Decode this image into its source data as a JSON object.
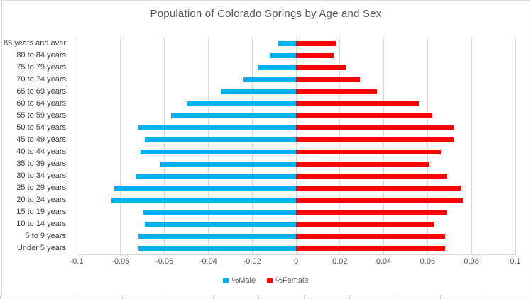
{
  "chart_data": {
    "type": "bar",
    "orientation": "horizontal",
    "title": "Population of Colorado Springs by Age and Sex",
    "categories": [
      "85 years and over",
      "80 to 84 years",
      "75 to 79 years",
      "70 to 74 years",
      "65 to 69 years",
      "60 to 64 years",
      "55 to 59 years",
      "50 to 54 years",
      "45 to 49 years",
      "40 to 44 years",
      "35 to 39 years",
      "30 to 34 years",
      "25 to 29 years",
      "20 to 24 years",
      "15 to 19 years",
      "10 to 14 years",
      "5 to 9 years",
      "Under 5 years"
    ],
    "series": [
      {
        "name": "%Male",
        "color": "#00b0f0",
        "values": [
          -0.008,
          -0.012,
          -0.017,
          -0.024,
          -0.034,
          -0.05,
          -0.057,
          -0.072,
          -0.069,
          -0.071,
          -0.062,
          -0.073,
          -0.083,
          -0.084,
          -0.07,
          -0.069,
          -0.072,
          -0.072
        ]
      },
      {
        "name": "%Female",
        "color": "#ff0000",
        "values": [
          0.018,
          0.017,
          0.023,
          0.029,
          0.037,
          0.056,
          0.062,
          0.072,
          0.072,
          0.066,
          0.061,
          0.069,
          0.075,
          0.076,
          0.069,
          0.063,
          0.068,
          0.068
        ]
      }
    ],
    "xlim": [
      -0.1,
      0.1
    ],
    "x_ticks": [
      -0.1,
      -0.08,
      -0.06,
      -0.04,
      -0.02,
      0,
      0.02,
      0.04,
      0.06,
      0.08,
      0.1
    ],
    "x_tick_labels": [
      "-0.1",
      "-0.08",
      "-0.06",
      "-0.04",
      "-0.02",
      "0",
      "0.02",
      "0.04",
      "0.06",
      "0.08",
      "0.1"
    ],
    "grid": "vertical",
    "legend_position": "bottom"
  },
  "colors": {
    "male_bar": "#00b0f0",
    "female_bar": "#ff0000",
    "gridline": "#d9d9d9",
    "title_text": "#595959",
    "axis_text": "#595959",
    "category_text": "#404040",
    "chart_border": "#d9d9d9"
  }
}
